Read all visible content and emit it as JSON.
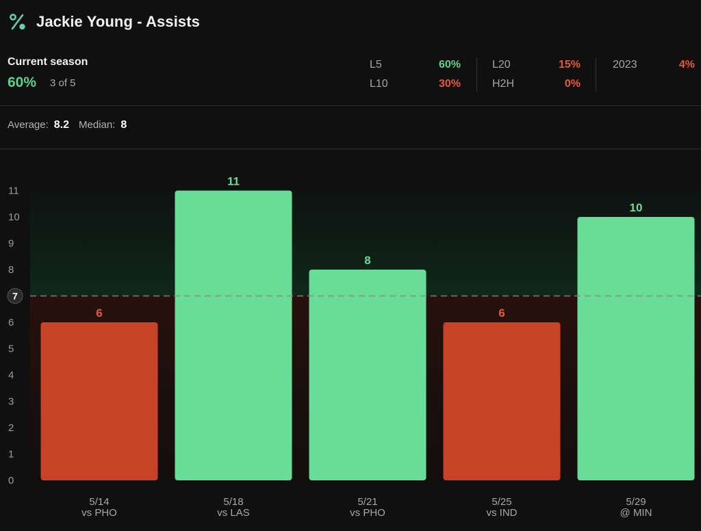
{
  "header": {
    "title": "Jackie Young - Assists",
    "icon": "percent-icon"
  },
  "season": {
    "label": "Current season",
    "pct": "60%",
    "count": "3 of 5"
  },
  "stats": [
    {
      "label": "L5",
      "value": "60%",
      "color": "#5fd08d"
    },
    {
      "label": "L10",
      "value": "30%",
      "color": "#e4583b"
    },
    {
      "label": "L20",
      "value": "15%",
      "color": "#e4583b"
    },
    {
      "label": "H2H",
      "value": "0%",
      "color": "#e4583b"
    },
    {
      "label": "2023",
      "value": "4%",
      "color": "#e4583b"
    }
  ],
  "summary": {
    "average_label": "Average:",
    "average": "8.2",
    "median_label": "Median:",
    "median": "8"
  },
  "colors": {
    "over": "#69dc97",
    "under": "#c84228",
    "over_text": "#69dc97",
    "under_text": "#e4583b"
  },
  "chart_data": {
    "type": "bar",
    "categories": [
      "5/14 vs PHO",
      "5/18 vs LAS",
      "5/21 vs PHO",
      "5/25 vs IND",
      "5/29 @ MIN"
    ],
    "dates": [
      "5/14",
      "5/18",
      "5/21",
      "5/25",
      "5/29"
    ],
    "opponents": [
      "vs PHO",
      "vs LAS",
      "vs PHO",
      "vs IND",
      "@ MIN"
    ],
    "values": [
      6,
      11,
      8,
      6,
      10
    ],
    "line": 7,
    "ylim": [
      0,
      11
    ],
    "yticks": [
      0,
      1,
      2,
      3,
      4,
      5,
      6,
      7,
      8,
      9,
      10,
      11
    ],
    "title": "",
    "xlabel": "",
    "ylabel": "",
    "grid": false
  }
}
